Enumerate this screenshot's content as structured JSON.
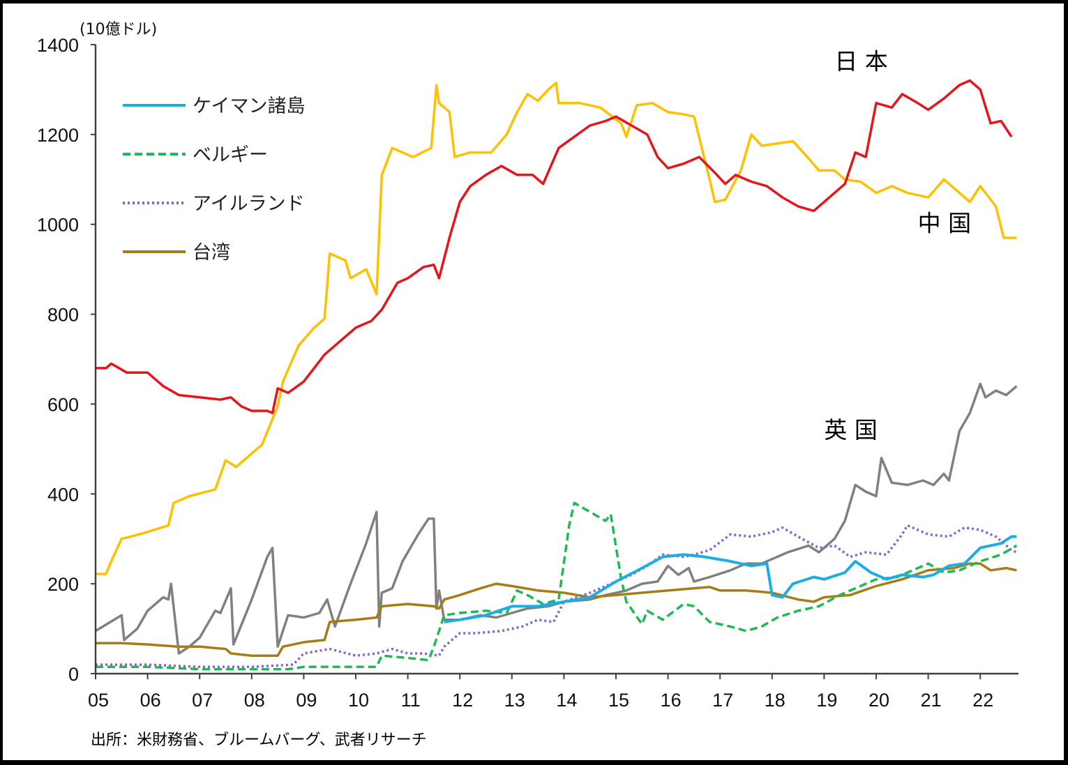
{
  "chart_data": {
    "type": "line",
    "title": "",
    "ylabel": "(10億ドル)",
    "xlabel": "",
    "ylim": [
      0,
      1400
    ],
    "xlim": [
      2005,
      2022.75
    ],
    "yticks": [
      0,
      200,
      400,
      600,
      800,
      1000,
      1200,
      1400
    ],
    "xticks": [
      {
        "year": 2005,
        "label": "05"
      },
      {
        "year": 2006,
        "label": "06"
      },
      {
        "year": 2007,
        "label": "07"
      },
      {
        "year": 2008,
        "label": "08"
      },
      {
        "year": 2009,
        "label": "09"
      },
      {
        "year": 2010,
        "label": "10"
      },
      {
        "year": 2011,
        "label": "11"
      },
      {
        "year": 2012,
        "label": "12"
      },
      {
        "year": 2013,
        "label": "13"
      },
      {
        "year": 2014,
        "label": "14"
      },
      {
        "year": 2015,
        "label": "15"
      },
      {
        "year": 2016,
        "label": "16"
      },
      {
        "year": 2017,
        "label": "17"
      },
      {
        "year": 2018,
        "label": "18"
      },
      {
        "year": 2019,
        "label": "19"
      },
      {
        "year": 2020,
        "label": "20"
      },
      {
        "year": 2021,
        "label": "21"
      },
      {
        "year": 2022,
        "label": "22"
      }
    ],
    "grid": false,
    "legend_position": "top-left",
    "source": "出所：米財務省、ブルームバーグ、武者リサーチ",
    "annotations": [
      {
        "text": "日 本",
        "series": "japan",
        "x": 2019.2,
        "y": 1345
      },
      {
        "text": "中 国",
        "series": "china",
        "x": 2020.8,
        "y": 985
      },
      {
        "text": "英 国",
        "series": "uk",
        "x": 2019.0,
        "y": 525
      }
    ],
    "series": [
      {
        "key": "china",
        "name": "中国",
        "color": "#FFC000",
        "style": "solid",
        "in_legend": false,
        "x": [
          2005.0,
          2005.2,
          2005.3,
          2005.5,
          2005.9,
          2006.4,
          2006.5,
          2006.8,
          2007.3,
          2007.5,
          2007.7,
          2008.0,
          2008.2,
          2008.5,
          2008.6,
          2008.9,
          2009.2,
          2009.4,
          2009.5,
          2009.8,
          2009.9,
          2010.2,
          2010.4,
          2010.5,
          2010.7,
          2011.1,
          2011.45,
          2011.55,
          2011.6,
          2011.8,
          2011.9,
          2012.2,
          2012.6,
          2012.9,
          2013.1,
          2013.3,
          2013.5,
          2013.7,
          2013.85,
          2013.9,
          2014.3,
          2014.7,
          2015.1,
          2015.2,
          2015.4,
          2015.7,
          2016.0,
          2016.3,
          2016.5,
          2016.8,
          2016.9,
          2017.1,
          2017.4,
          2017.6,
          2017.8,
          2018.1,
          2018.4,
          2018.6,
          2018.9,
          2019.2,
          2019.4,
          2019.7,
          2020.0,
          2020.3,
          2020.6,
          2021.0,
          2021.3,
          2021.6,
          2021.8,
          2022.0,
          2022.3,
          2022.45,
          2022.6,
          2022.7
        ],
        "values": [
          222,
          222,
          250,
          300,
          312,
          330,
          380,
          395,
          410,
          475,
          460,
          490,
          510,
          595,
          650,
          730,
          770,
          790,
          935,
          920,
          880,
          900,
          845,
          1110,
          1170,
          1150,
          1170,
          1310,
          1270,
          1250,
          1150,
          1160,
          1160,
          1200,
          1250,
          1290,
          1275,
          1300,
          1315,
          1270,
          1270,
          1260,
          1225,
          1195,
          1265,
          1270,
          1250,
          1245,
          1240,
          1100,
          1050,
          1055,
          1120,
          1200,
          1175,
          1180,
          1185,
          1160,
          1120,
          1120,
          1100,
          1095,
          1070,
          1085,
          1070,
          1060,
          1100,
          1070,
          1050,
          1085,
          1040,
          970,
          970,
          970
        ]
      },
      {
        "key": "japan",
        "name": "日本",
        "color": "#E8141B",
        "style": "solid",
        "in_legend": false,
        "x": [
          2005.0,
          2005.2,
          2005.3,
          2005.6,
          2006.0,
          2006.1,
          2006.3,
          2006.6,
          2007.0,
          2007.4,
          2007.6,
          2007.8,
          2008.0,
          2008.3,
          2008.4,
          2008.5,
          2008.7,
          2009.0,
          2009.2,
          2009.4,
          2009.7,
          2010.0,
          2010.3,
          2010.5,
          2010.8,
          2011.0,
          2011.3,
          2011.5,
          2011.6,
          2011.8,
          2012.0,
          2012.2,
          2012.5,
          2012.8,
          2013.1,
          2013.4,
          2013.6,
          2013.9,
          2014.2,
          2014.5,
          2014.8,
          2015.0,
          2015.3,
          2015.6,
          2015.8,
          2016.0,
          2016.3,
          2016.6,
          2016.9,
          2017.1,
          2017.3,
          2017.6,
          2017.9,
          2018.2,
          2018.5,
          2018.8,
          2019.1,
          2019.4,
          2019.6,
          2019.8,
          2020.0,
          2020.3,
          2020.5,
          2020.8,
          2021.0,
          2021.3,
          2021.6,
          2021.8,
          2022.0,
          2022.2,
          2022.4,
          2022.6
        ],
        "values": [
          680,
          680,
          690,
          670,
          670,
          660,
          640,
          620,
          615,
          610,
          615,
          595,
          585,
          585,
          580,
          635,
          625,
          650,
          680,
          710,
          740,
          770,
          785,
          810,
          870,
          880,
          905,
          910,
          880,
          970,
          1050,
          1085,
          1110,
          1130,
          1110,
          1110,
          1090,
          1170,
          1195,
          1220,
          1230,
          1240,
          1220,
          1200,
          1150,
          1125,
          1135,
          1150,
          1115,
          1090,
          1110,
          1095,
          1085,
          1060,
          1040,
          1030,
          1060,
          1090,
          1160,
          1150,
          1270,
          1260,
          1290,
          1270,
          1255,
          1280,
          1310,
          1320,
          1300,
          1225,
          1230,
          1195
        ]
      },
      {
        "key": "uk",
        "name": "英国",
        "color": "#808080",
        "style": "solid",
        "in_legend": false,
        "x": [
          2005.0,
          2005.5,
          2005.55,
          2005.8,
          2006.0,
          2006.3,
          2006.4,
          2006.45,
          2006.6,
          2006.8,
          2007.0,
          2007.3,
          2007.4,
          2007.6,
          2007.65,
          2008.0,
          2008.3,
          2008.4,
          2008.5,
          2008.7,
          2009.0,
          2009.3,
          2009.45,
          2009.6,
          2009.9,
          2010.2,
          2010.4,
          2010.45,
          2010.5,
          2010.7,
          2010.9,
          2011.2,
          2011.4,
          2011.5,
          2011.55,
          2011.6,
          2011.7,
          2012.0,
          2012.4,
          2012.7,
          2013.0,
          2013.3,
          2013.7,
          2014.0,
          2014.5,
          2014.8,
          2015.2,
          2015.5,
          2015.8,
          2016.0,
          2016.2,
          2016.4,
          2016.5,
          2016.8,
          2017.2,
          2017.5,
          2017.8,
          2018.0,
          2018.3,
          2018.7,
          2018.9,
          2019.2,
          2019.4,
          2019.6,
          2019.8,
          2020.0,
          2020.1,
          2020.3,
          2020.6,
          2020.9,
          2021.1,
          2021.3,
          2021.4,
          2021.6,
          2021.8,
          2022.0,
          2022.1,
          2022.3,
          2022.5,
          2022.7
        ],
        "values": [
          95,
          130,
          75,
          100,
          140,
          170,
          165,
          200,
          45,
          60,
          80,
          140,
          135,
          190,
          65,
          165,
          260,
          280,
          60,
          130,
          125,
          135,
          165,
          105,
          200,
          290,
          360,
          105,
          180,
          190,
          250,
          310,
          345,
          345,
          145,
          185,
          120,
          120,
          130,
          125,
          135,
          145,
          150,
          160,
          165,
          175,
          185,
          200,
          205,
          240,
          220,
          235,
          205,
          215,
          230,
          245,
          245,
          255,
          270,
          285,
          270,
          300,
          340,
          420,
          405,
          395,
          480,
          425,
          420,
          430,
          420,
          445,
          430,
          540,
          580,
          645,
          615,
          630,
          620,
          640
        ]
      },
      {
        "key": "cayman",
        "name": "ケイマン諸島",
        "color": "#1CADE4",
        "style": "solid",
        "in_legend": true,
        "x": [
          2011.7,
          2012.0,
          2012.5,
          2013.0,
          2013.5,
          2014.0,
          2014.5,
          2015.0,
          2015.5,
          2015.9,
          2016.3,
          2016.7,
          2017.2,
          2017.6,
          2017.9,
          2018.0,
          2018.2,
          2018.4,
          2018.8,
          2019.0,
          2019.4,
          2019.6,
          2019.9,
          2020.2,
          2020.5,
          2020.9,
          2021.1,
          2021.4,
          2021.7,
          2022.0,
          2022.4,
          2022.6,
          2022.7
        ],
        "values": [
          115,
          120,
          130,
          150,
          150,
          160,
          170,
          205,
          235,
          260,
          265,
          260,
          250,
          240,
          245,
          175,
          170,
          200,
          215,
          210,
          225,
          250,
          225,
          210,
          220,
          215,
          220,
          240,
          245,
          280,
          290,
          305,
          305
        ]
      },
      {
        "key": "belgium",
        "name": "ベルギー",
        "color": "#1DB954",
        "style": "dashed",
        "in_legend": true,
        "x": [
          2005.0,
          2006.0,
          2007.0,
          2008.0,
          2008.7,
          2009.0,
          2010.0,
          2010.4,
          2010.5,
          2011.0,
          2011.4,
          2011.5,
          2011.7,
          2012.0,
          2012.5,
          2012.9,
          2013.1,
          2013.3,
          2013.6,
          2013.9,
          2014.1,
          2014.2,
          2014.5,
          2014.8,
          2014.9,
          2015.1,
          2015.2,
          2015.5,
          2015.6,
          2015.9,
          2016.3,
          2016.5,
          2016.8,
          2017.2,
          2017.5,
          2017.8,
          2018.1,
          2018.5,
          2018.9,
          2019.3,
          2019.6,
          2020.0,
          2020.4,
          2020.8,
          2021.0,
          2021.3,
          2021.6,
          2022.0,
          2022.4,
          2022.7
        ],
        "values": [
          15,
          15,
          10,
          10,
          10,
          15,
          15,
          15,
          40,
          35,
          30,
          60,
          130,
          135,
          140,
          135,
          185,
          175,
          155,
          165,
          330,
          380,
          360,
          340,
          355,
          210,
          160,
          110,
          140,
          120,
          155,
          150,
          115,
          105,
          95,
          105,
          125,
          140,
          150,
          175,
          190,
          210,
          215,
          235,
          245,
          225,
          230,
          250,
          265,
          285
        ]
      },
      {
        "key": "ireland",
        "name": "アイルランド",
        "color": "#8E5FC7",
        "style": "dotted",
        "in_legend": true,
        "x": [
          2005.0,
          2006.0,
          2007.0,
          2008.0,
          2008.8,
          2009.0,
          2009.5,
          2010.0,
          2010.4,
          2010.7,
          2011.0,
          2011.3,
          2011.6,
          2011.7,
          2012.0,
          2012.3,
          2012.8,
          2013.2,
          2013.5,
          2013.8,
          2014.0,
          2014.5,
          2014.9,
          2015.3,
          2015.6,
          2015.9,
          2016.3,
          2016.5,
          2016.8,
          2017.2,
          2017.6,
          2018.0,
          2018.2,
          2018.5,
          2018.9,
          2019.2,
          2019.5,
          2019.8,
          2020.2,
          2020.5,
          2020.6,
          2021.0,
          2021.4,
          2021.7,
          2022.0,
          2022.3,
          2022.6,
          2022.7
        ],
        "values": [
          20,
          20,
          15,
          15,
          20,
          45,
          55,
          40,
          45,
          55,
          45,
          45,
          40,
          60,
          90,
          90,
          95,
          105,
          120,
          115,
          160,
          180,
          200,
          220,
          240,
          265,
          260,
          265,
          275,
          310,
          305,
          315,
          325,
          305,
          280,
          285,
          260,
          270,
          265,
          310,
          330,
          310,
          305,
          325,
          320,
          305,
          275,
          270
        ]
      },
      {
        "key": "taiwan",
        "name": "台湾",
        "color": "#A67C14",
        "style": "solid",
        "in_legend": true,
        "x": [
          2005.0,
          2005.5,
          2006.0,
          2006.6,
          2007.0,
          2007.5,
          2007.6,
          2008.0,
          2008.5,
          2008.6,
          2009.0,
          2009.4,
          2009.5,
          2010.0,
          2010.4,
          2010.5,
          2011.0,
          2011.5,
          2011.6,
          2011.7,
          2012.0,
          2012.4,
          2012.7,
          2013.0,
          2013.5,
          2014.0,
          2014.5,
          2015.0,
          2015.5,
          2016.0,
          2016.5,
          2016.8,
          2017.0,
          2017.5,
          2018.0,
          2018.5,
          2018.8,
          2019.0,
          2019.5,
          2020.0,
          2020.5,
          2021.0,
          2021.5,
          2021.8,
          2022.0,
          2022.2,
          2022.5,
          2022.7
        ],
        "values": [
          68,
          68,
          65,
          60,
          60,
          55,
          45,
          40,
          40,
          60,
          70,
          75,
          115,
          120,
          125,
          150,
          155,
          150,
          145,
          165,
          175,
          190,
          200,
          195,
          185,
          180,
          170,
          175,
          180,
          185,
          190,
          193,
          185,
          185,
          180,
          165,
          160,
          170,
          175,
          195,
          210,
          230,
          235,
          245,
          245,
          230,
          235,
          230
        ]
      }
    ]
  }
}
